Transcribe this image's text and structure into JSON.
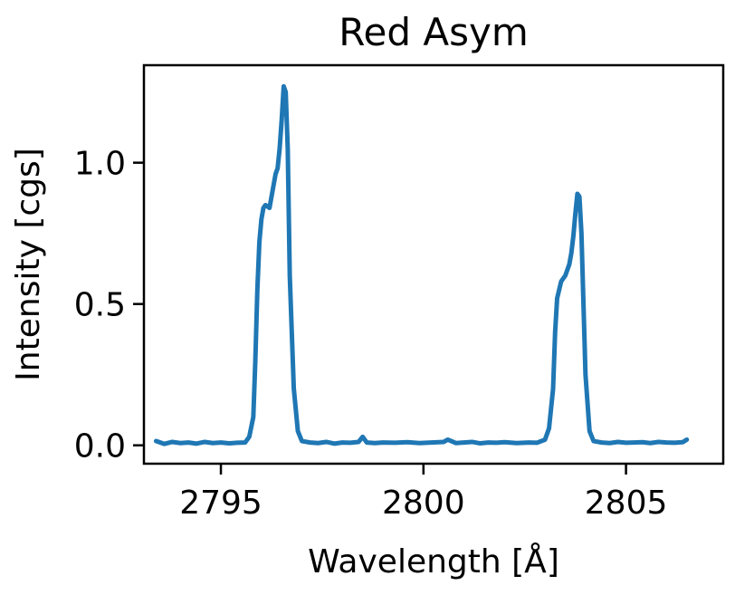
{
  "chart_data": {
    "type": "line",
    "title": "Red Asym",
    "xlabel": "Wavelength [Å]",
    "ylabel": "Intensity [cgs]",
    "xlim": [
      2793.1,
      2807.4
    ],
    "ylim": [
      -0.065,
      1.345
    ],
    "xticks": [
      2795,
      2800,
      2805
    ],
    "xtick_labels": [
      "2795",
      "2800",
      "2805"
    ],
    "yticks": [
      0.0,
      0.5,
      1.0
    ],
    "ytick_labels": [
      "0.0",
      "0.5",
      "1.0"
    ],
    "grid": false,
    "series": [
      {
        "color": "#1f77b4",
        "x": [
          2793.4,
          2793.6,
          2793.8,
          2794.0,
          2794.2,
          2794.4,
          2794.6,
          2794.8,
          2795.0,
          2795.2,
          2795.4,
          2795.6,
          2795.7,
          2795.8,
          2795.85,
          2795.9,
          2795.95,
          2796.0,
          2796.05,
          2796.1,
          2796.2,
          2796.3,
          2796.35,
          2796.4,
          2796.45,
          2796.5,
          2796.55,
          2796.6,
          2796.65,
          2796.7,
          2796.8,
          2796.9,
          2797.0,
          2797.2,
          2797.4,
          2797.6,
          2797.8,
          2798.0,
          2798.2,
          2798.4,
          2798.5,
          2798.6,
          2798.8,
          2799.0,
          2799.3,
          2799.6,
          2799.9,
          2800.2,
          2800.5,
          2800.6,
          2800.8,
          2801.0,
          2801.2,
          2801.4,
          2801.6,
          2801.8,
          2802.0,
          2802.3,
          2802.6,
          2802.8,
          2803.0,
          2803.1,
          2803.2,
          2803.25,
          2803.3,
          2803.4,
          2803.5,
          2803.55,
          2803.6,
          2803.65,
          2803.7,
          2803.75,
          2803.8,
          2803.85,
          2803.9,
          2803.95,
          2804.0,
          2804.1,
          2804.2,
          2804.4,
          2804.6,
          2804.8,
          2805.0,
          2805.2,
          2805.4,
          2805.6,
          2805.8,
          2806.0,
          2806.2,
          2806.4,
          2806.5
        ],
        "y": [
          0.015,
          0.005,
          0.012,
          0.008,
          0.01,
          0.006,
          0.012,
          0.008,
          0.01,
          0.007,
          0.009,
          0.01,
          0.03,
          0.1,
          0.3,
          0.55,
          0.72,
          0.8,
          0.84,
          0.85,
          0.84,
          0.92,
          0.96,
          0.98,
          1.05,
          1.15,
          1.27,
          1.25,
          1.05,
          0.6,
          0.2,
          0.05,
          0.015,
          0.01,
          0.008,
          0.012,
          0.006,
          0.01,
          0.009,
          0.012,
          0.03,
          0.01,
          0.008,
          0.01,
          0.009,
          0.011,
          0.008,
          0.01,
          0.012,
          0.02,
          0.008,
          0.01,
          0.012,
          0.007,
          0.01,
          0.009,
          0.011,
          0.008,
          0.01,
          0.009,
          0.02,
          0.06,
          0.2,
          0.4,
          0.52,
          0.58,
          0.6,
          0.62,
          0.64,
          0.68,
          0.74,
          0.82,
          0.89,
          0.88,
          0.75,
          0.5,
          0.25,
          0.05,
          0.015,
          0.01,
          0.008,
          0.012,
          0.009,
          0.01,
          0.011,
          0.008,
          0.012,
          0.01,
          0.009,
          0.011,
          0.02
        ]
      }
    ]
  }
}
